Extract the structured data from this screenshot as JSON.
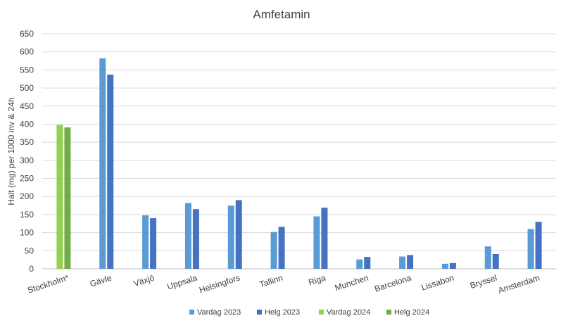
{
  "chart_data": {
    "type": "bar",
    "title": "Amfetamin",
    "xlabel": "",
    "ylabel": "Halt (mg) per 1000 inv & 24h",
    "ylim": [
      0,
      650
    ],
    "yticks": [
      0,
      50,
      100,
      150,
      200,
      250,
      300,
      350,
      400,
      450,
      500,
      550,
      600,
      650
    ],
    "grid": true,
    "legend_position": "bottom",
    "categories": [
      "Stockholm*",
      "Gävle",
      "Växjö",
      "Uppsala",
      "Helsingfors",
      "Tallinn",
      "Riga",
      "Munchen",
      "Barcelona",
      "Lissabon",
      "Bryssel",
      "Amsterdam"
    ],
    "series": [
      {
        "name": "Vardag 2023",
        "color": "#5b9bd5",
        "values": [
          null,
          582,
          148,
          182,
          175,
          102,
          145,
          26,
          34,
          14,
          62,
          110
        ]
      },
      {
        "name": "Helg 2023",
        "color": "#4472c4",
        "values": [
          null,
          537,
          140,
          165,
          190,
          116,
          169,
          33,
          38,
          16,
          41,
          130
        ]
      },
      {
        "name": "Vardag 2024",
        "color": "#92d050",
        "values": [
          398,
          null,
          null,
          null,
          null,
          null,
          null,
          null,
          null,
          null,
          null,
          null
        ]
      },
      {
        "name": "Helg 2024",
        "color": "#70ad47",
        "values": [
          391,
          null,
          null,
          null,
          null,
          null,
          null,
          null,
          null,
          null,
          null,
          null
        ]
      }
    ]
  }
}
